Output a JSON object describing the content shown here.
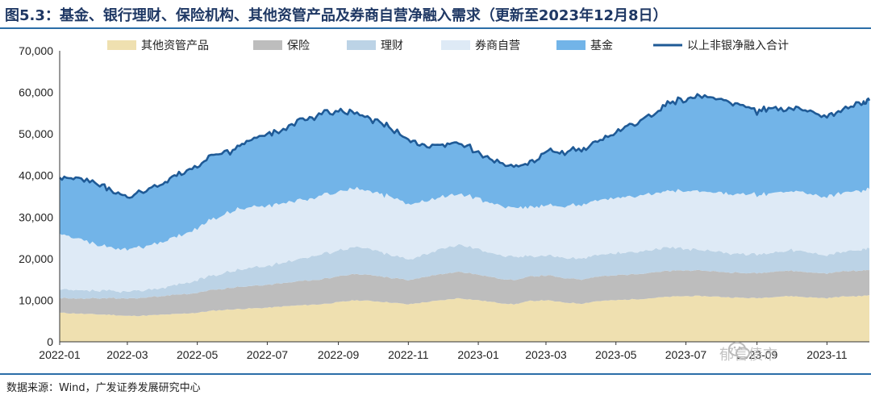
{
  "title": "图5.3：基金、银行理财、保险机构、其他资管产品及券商自营净融入需求（更新至2023年12月8日）",
  "source": "数据来源：Wind，广发证券发展研究中心",
  "watermark": "郁言债市",
  "chart_data": {
    "type": "area",
    "stacked": true,
    "ylim": [
      0,
      70000
    ],
    "yticks": [
      "0",
      "10,000",
      "20,000",
      "30,000",
      "40,000",
      "50,000",
      "60,000",
      "70,000"
    ],
    "xticks": [
      "2022-01",
      "2022-03",
      "2022-05",
      "2022-07",
      "2022-09",
      "2022-11",
      "2023-01",
      "2023-03",
      "2023-05",
      "2023-07",
      "2023-09",
      "2023-11"
    ],
    "legend_position": "top",
    "x": [
      "2022-01-01",
      "2022-01-15",
      "2022-02-01",
      "2022-02-15",
      "2022-03-01",
      "2022-03-15",
      "2022-04-01",
      "2022-04-15",
      "2022-05-01",
      "2022-05-15",
      "2022-06-01",
      "2022-06-15",
      "2022-07-01",
      "2022-07-15",
      "2022-08-01",
      "2022-08-15",
      "2022-09-01",
      "2022-09-15",
      "2022-10-01",
      "2022-10-15",
      "2022-11-01",
      "2022-11-15",
      "2022-12-01",
      "2022-12-15",
      "2023-01-01",
      "2023-01-15",
      "2023-02-01",
      "2023-02-15",
      "2023-03-01",
      "2023-03-15",
      "2023-04-01",
      "2023-04-15",
      "2023-05-01",
      "2023-05-15",
      "2023-06-01",
      "2023-06-15",
      "2023-07-01",
      "2023-07-15",
      "2023-08-01",
      "2023-08-15",
      "2023-09-01",
      "2023-09-15",
      "2023-10-01",
      "2023-10-15",
      "2023-11-01",
      "2023-11-15",
      "2023-12-01",
      "2023-12-08"
    ],
    "series": [
      {
        "name": "其他资管产品",
        "color": "#efe0b0",
        "values": [
          7000,
          6800,
          6600,
          6500,
          6200,
          6300,
          6500,
          6700,
          7000,
          7500,
          7800,
          8000,
          8200,
          8500,
          8800,
          9000,
          9500,
          10000,
          9800,
          9500,
          9000,
          9500,
          10000,
          10500,
          10000,
          9500,
          9000,
          9800,
          10000,
          9500,
          9200,
          9800,
          10000,
          10200,
          10500,
          10800,
          11000,
          11000,
          10800,
          10600,
          10500,
          10800,
          11000,
          10700,
          10500,
          10900,
          11000,
          11200
        ]
      },
      {
        "name": "保险",
        "color": "#bdbdbd",
        "values": [
          3500,
          3600,
          3800,
          4000,
          4200,
          4300,
          4500,
          4600,
          4800,
          5000,
          5200,
          5400,
          5500,
          5600,
          5800,
          6000,
          6200,
          6300,
          6200,
          6000,
          5800,
          6100,
          6300,
          6400,
          6200,
          6000,
          5800,
          5900,
          6000,
          5900,
          5800,
          5900,
          6000,
          6000,
          6100,
          6200,
          6200,
          6100,
          6000,
          6000,
          6000,
          6100,
          6100,
          6000,
          6000,
          6100,
          6100,
          6100
        ]
      },
      {
        "name": "理财",
        "color": "#bcd3e6",
        "values": [
          2000,
          1900,
          1800,
          1700,
          1600,
          1800,
          2000,
          2500,
          3000,
          3500,
          4000,
          4300,
          4500,
          5000,
          5500,
          6000,
          6300,
          6500,
          6200,
          5500,
          5000,
          5500,
          6000,
          6500,
          6200,
          5800,
          5500,
          5000,
          4800,
          4900,
          5000,
          5200,
          5300,
          5400,
          5500,
          5500,
          5200,
          5000,
          4800,
          4600,
          4500,
          4700,
          5000,
          4800,
          4500,
          4700,
          5000,
          5200
        ]
      },
      {
        "name": "券商自营",
        "color": "#deeaf6",
        "values": [
          13500,
          12500,
          11000,
          10500,
          10000,
          10500,
          11000,
          11500,
          12500,
          13500,
          14500,
          14500,
          14500,
          14500,
          14000,
          14000,
          14000,
          14000,
          14000,
          14000,
          13200,
          12800,
          12600,
          12300,
          12100,
          12000,
          11700,
          11800,
          12000,
          12400,
          12800,
          13100,
          13400,
          13500,
          13600,
          13700,
          14000,
          14000,
          14200,
          14300,
          14300,
          14200,
          14100,
          14100,
          14100,
          14200,
          14200,
          14200
        ]
      },
      {
        "name": "基金",
        "color": "#72b4e8",
        "values": [
          13500,
          14200,
          14800,
          13800,
          12500,
          13100,
          14000,
          15200,
          14700,
          15500,
          14500,
          16300,
          17300,
          17400,
          19400,
          19500,
          19500,
          18200,
          17300,
          16500,
          15500,
          13300,
          12600,
          12300,
          11000,
          10200,
          10000,
          10500,
          12700,
          13100,
          13200,
          14000,
          15800,
          17400,
          18800,
          21300,
          22100,
          22900,
          22500,
          21500,
          20200,
          20200,
          19800,
          19900,
          19400,
          20100,
          21200,
          21300
        ]
      }
    ],
    "total_line": {
      "name": "以上非银净融入合计",
      "color": "#1f5a96"
    }
  }
}
